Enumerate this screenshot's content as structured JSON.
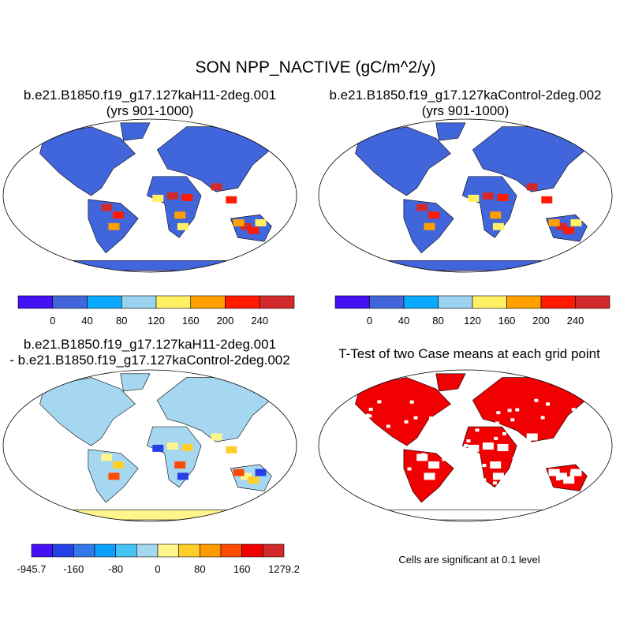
{
  "title": "SON NPP_NACTIVE (gC/m^2/y)",
  "panels": [
    {
      "title": "b.e21.B1850.f19_g17.127kaH11-2deg.001",
      "subtitle": "(yrs 901-1000)"
    },
    {
      "title": "b.e21.B1850.f19_g17.127kaControl-2deg.002",
      "subtitle": "(yrs 901-1000)"
    },
    {
      "title": "b.e21.B1850.f19_g17.127kaH11-2deg.001",
      "subtitle": "- b.e21.B1850.f19_g17.127kaControl-2deg.002"
    },
    {
      "title": "T-Test of two Case means at each grid point",
      "note": "Cells are significant at 0.1 level"
    }
  ],
  "colorbar_abs": {
    "colors": [
      "#4410f5",
      "#4166dc",
      "#0aaaff",
      "#9bd2ed",
      "#fff064",
      "#ffa000",
      "#ff1a00",
      "#d22a2a"
    ],
    "labels": [
      "0",
      "40",
      "80",
      "120",
      "160",
      "200",
      "240"
    ]
  },
  "colorbar_diff": {
    "colors": [
      "#4410f5",
      "#2540e6",
      "#3278e6",
      "#0aa0ff",
      "#46c3f5",
      "#a5d7f0",
      "#fff58c",
      "#ffcd28",
      "#ff9b00",
      "#ff4b00",
      "#f00000",
      "#d22a2a"
    ],
    "labels": [
      "-945.7",
      "-160",
      "-80",
      "0",
      "80",
      "160",
      "1279.2"
    ]
  },
  "chart_data": {
    "type": "heatmap",
    "title": "SON NPP_NACTIVE (gC/m^2/y)",
    "abs_levels": [
      0,
      40,
      80,
      120,
      160,
      200,
      240
    ],
    "diff_levels": [
      -200,
      -160,
      -120,
      -80,
      -40,
      0,
      40,
      80,
      120,
      160,
      200
    ],
    "diff_range": [
      -945.7,
      1279.2
    ],
    "significance_level": 0.1
  }
}
